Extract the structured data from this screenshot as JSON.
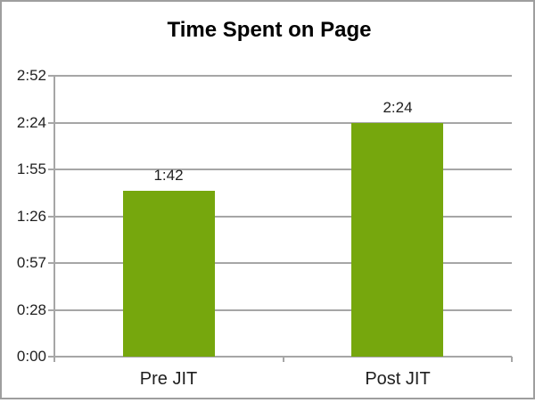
{
  "chart_data": {
    "type": "bar",
    "title": "Time Spent on Page",
    "categories": [
      "Pre JIT",
      "Post JIT"
    ],
    "values": [
      102,
      144
    ],
    "value_unit": "seconds (m:ss)",
    "value_labels": [
      "1:42",
      "2:24"
    ],
    "y_ticks": [
      {
        "label": "0:00",
        "value": 0
      },
      {
        "label": "0:28",
        "value": 28.8
      },
      {
        "label": "0:57",
        "value": 57.6
      },
      {
        "label": "1:26",
        "value": 86.4
      },
      {
        "label": "1:55",
        "value": 115.2
      },
      {
        "label": "2:24",
        "value": 144
      },
      {
        "label": "2:52",
        "value": 172.8
      }
    ],
    "ylim": [
      0,
      172.8
    ],
    "xlabel": "",
    "ylabel": "",
    "grid": true,
    "legend": false,
    "bar_color": "#76a70d",
    "gridline_color": "#a6a6a6",
    "axis_color": "#a6a6a6",
    "frame_border_color": "#9e9e9e",
    "text_color": "#1f1f1f",
    "background_color": "#ffffff"
  }
}
